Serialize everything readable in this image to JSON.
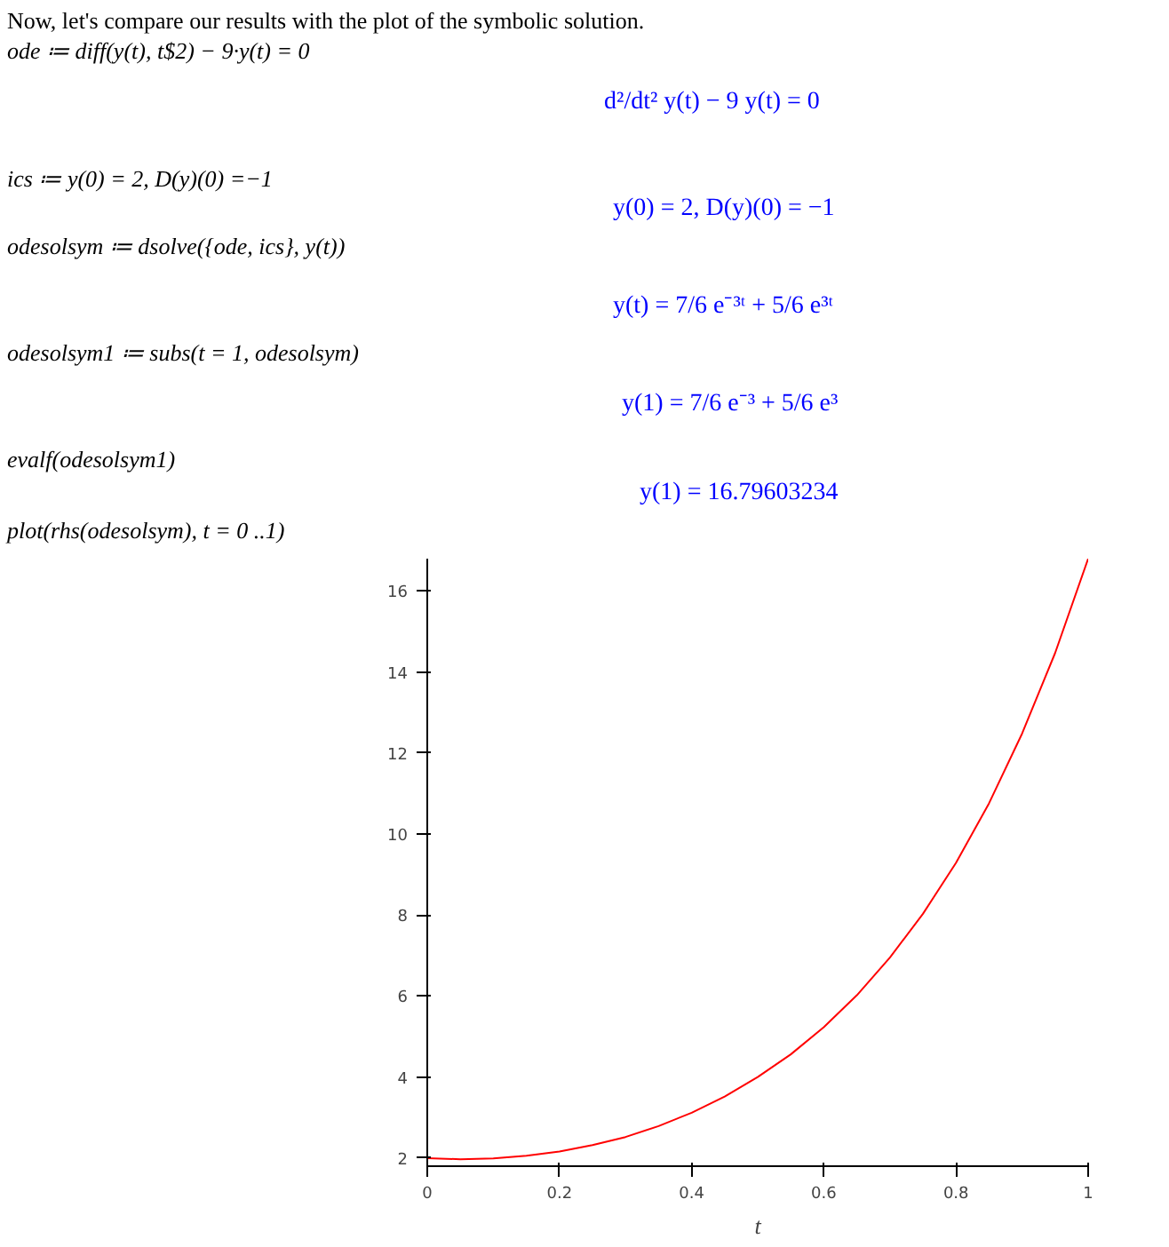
{
  "chart_data": {
    "type": "line",
    "xlabel": "t",
    "annotations": [
      "Now, let's compare our results with the plot of the symbolic solution.",
      "ode ≔ diff(y(t), t$2) − 9·y(t) = 0",
      "d²/dt² y(t) − 9 y(t) = 0",
      "ics ≔ y(0) = 2, D(y)(0) =−1",
      "y(0) = 2, D(y)(0) = −1",
      "odesolsym ≔ dsolve({ode, ics}, y(t))",
      "y(t) = 7/6 e⁻³ᵗ + 5/6 e³ᵗ",
      "odesolsym1 ≔ subs(t = 1, odesolsym)",
      "y(1) = 7/6 e⁻³ + 5/6 e³",
      "evalf(odesolsym1)",
      "y(1) = 16.79603234",
      "plot(rhs(odesolsym), t = 0 ..1)"
    ],
    "x": [
      0,
      0.05,
      0.1,
      0.15,
      0.2,
      0.25,
      0.3,
      0.35,
      0.4,
      0.45,
      0.5,
      0.55,
      0.6,
      0.65,
      0.7,
      0.75,
      0.8,
      0.85,
      0.9,
      0.95,
      1
    ],
    "series": [
      {
        "color": "#ff0000",
        "values": [
          2,
          1.97,
          1.99,
          2.06,
          2.16,
          2.32,
          2.52,
          2.79,
          3.12,
          3.52,
          4.0,
          4.56,
          5.23,
          6.02,
          6.95,
          8.03,
          9.29,
          10.76,
          12.48,
          14.47,
          16.8
        ]
      }
    ],
    "xlim": [
      0,
      1
    ],
    "ylim": [
      1.8,
      16.8
    ],
    "xticks": [
      0,
      0.2,
      0.4,
      0.6,
      0.8,
      1
    ],
    "yticks": [
      2,
      4,
      6,
      8,
      10,
      12,
      14,
      16
    ],
    "grid": false
  }
}
